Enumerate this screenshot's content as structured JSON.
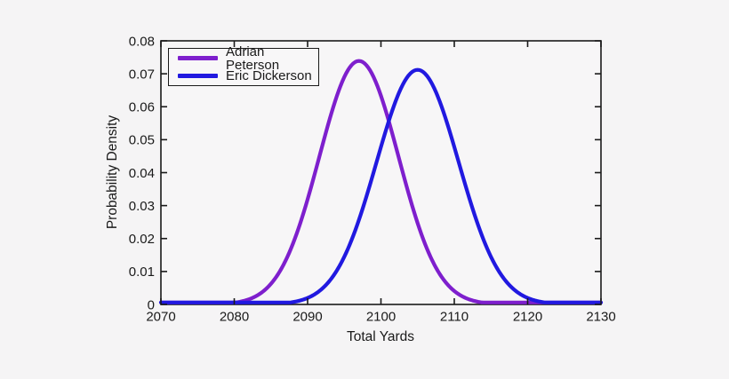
{
  "figure": {
    "background": "#f5f4f5",
    "plot_background": "#f7f6f7",
    "axis_color": "#1a1a1a",
    "text_color": "#1a1a1a"
  },
  "chart_data": {
    "type": "line",
    "title": "",
    "xlabel": "Total Yards",
    "ylabel": "Probability Density",
    "xlim": [
      2070,
      2130
    ],
    "ylim": [
      0,
      0.08
    ],
    "xticks": [
      2070,
      2080,
      2090,
      2100,
      2110,
      2120,
      2130
    ],
    "xtick_labels": [
      "2070",
      "2080",
      "2090",
      "2100",
      "2110",
      "2120",
      "2130"
    ],
    "yticks": [
      0,
      0.01,
      0.02,
      0.03,
      0.04,
      0.05,
      0.06,
      0.07,
      0.08
    ],
    "ytick_labels": [
      "0",
      "0.01",
      "0.02",
      "0.03",
      "0.04",
      "0.05",
      "0.06",
      "0.07",
      "0.08"
    ],
    "grid": false,
    "legend": {
      "position": "top-left",
      "entries": [
        "Adrian Peterson",
        "Eric Dickerson"
      ]
    },
    "series": [
      {
        "name": "Adrian Peterson",
        "color": "#7e1fcd",
        "distribution": "normal",
        "mean": 2097,
        "sd": 5.4,
        "peak_density": 0.0739,
        "crosses_other_at_x": 2101,
        "crosses_other_at_y": 0.055
      },
      {
        "name": "Eric Dickerson",
        "color": "#2119e0",
        "distribution": "normal",
        "mean": 2105,
        "sd": 5.6,
        "peak_density": 0.0712,
        "crosses_other_at_x": 2101,
        "crosses_other_at_y": 0.055
      }
    ]
  }
}
